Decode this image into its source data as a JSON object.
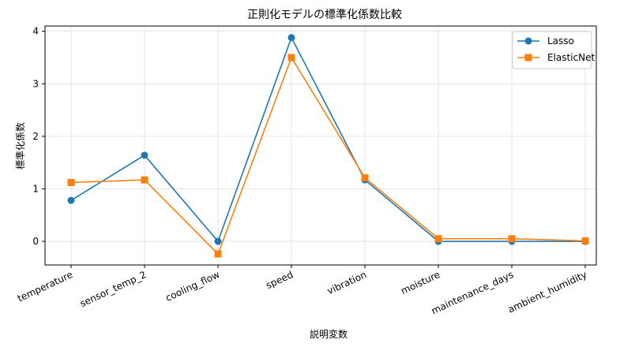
{
  "chart_data": {
    "type": "line",
    "title": "正則化モデルの標準化係数比較",
    "xlabel": "説明変数",
    "ylabel": "標準化係数",
    "categories": [
      "temperature",
      "sensor_temp_2",
      "cooling_flow",
      "speed",
      "vibration",
      "moisture",
      "maintenance_days",
      "ambient_humidity"
    ],
    "yticks": [
      "0",
      "1",
      "2",
      "3",
      "4"
    ],
    "ylim": [
      -0.45,
      4.1
    ],
    "grid": true,
    "legend_position": "top-right",
    "series": [
      {
        "name": "Lasso",
        "color": "#1f77b4",
        "marker": "circle",
        "values": [
          0.78,
          1.64,
          0.0,
          3.88,
          1.17,
          0.0,
          0.0,
          0.0
        ]
      },
      {
        "name": "ElasticNet",
        "color": "#ff7f0e",
        "marker": "square",
        "values": [
          1.12,
          1.17,
          -0.24,
          3.5,
          1.21,
          0.05,
          0.05,
          0.01
        ]
      }
    ]
  }
}
